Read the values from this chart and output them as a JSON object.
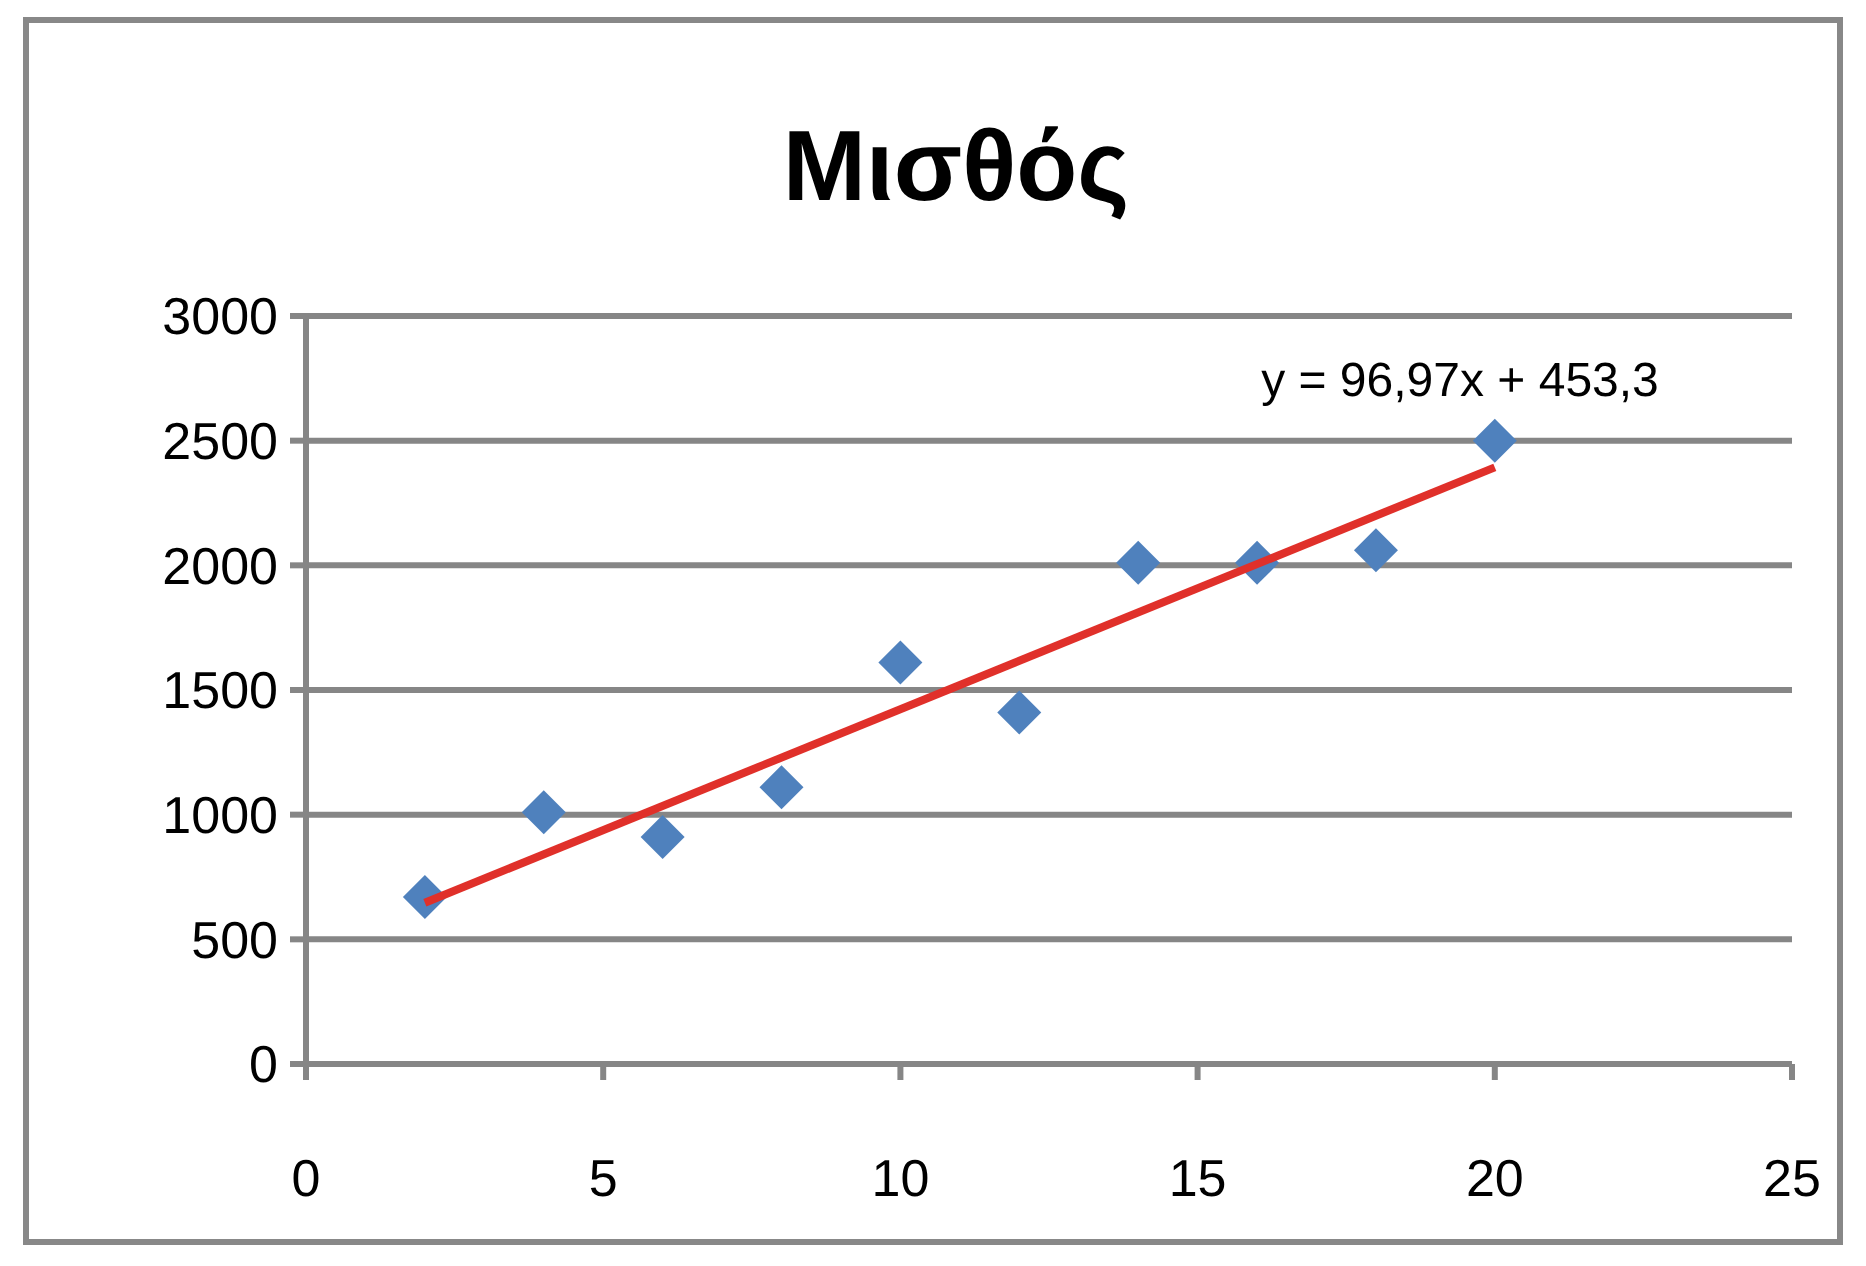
{
  "chart_data": {
    "type": "scatter",
    "title": "Μισθός",
    "series": [
      {
        "color": "#4f81bd",
        "marker": "diamond",
        "x": [
          2,
          4,
          6,
          8,
          10,
          12,
          14,
          16,
          18,
          20
        ],
        "values": [
          670,
          1010,
          910,
          1110,
          1610,
          1410,
          2010,
          2010,
          2060,
          2500
        ]
      },
      {
        "type": "line",
        "color": "#e0302a",
        "marker": "none",
        "x": [
          2,
          20
        ],
        "values": [
          647,
          2393
        ]
      }
    ],
    "annotations": [
      "y = 96,97x + 453,3"
    ],
    "xlim": [
      0,
      25
    ],
    "xticks": [
      0,
      5,
      10,
      15,
      20,
      25
    ],
    "ylim": [
      0,
      3000
    ],
    "yticks": [
      0,
      500,
      1000,
      1500,
      2000,
      2500,
      3000
    ],
    "grid": "y"
  }
}
